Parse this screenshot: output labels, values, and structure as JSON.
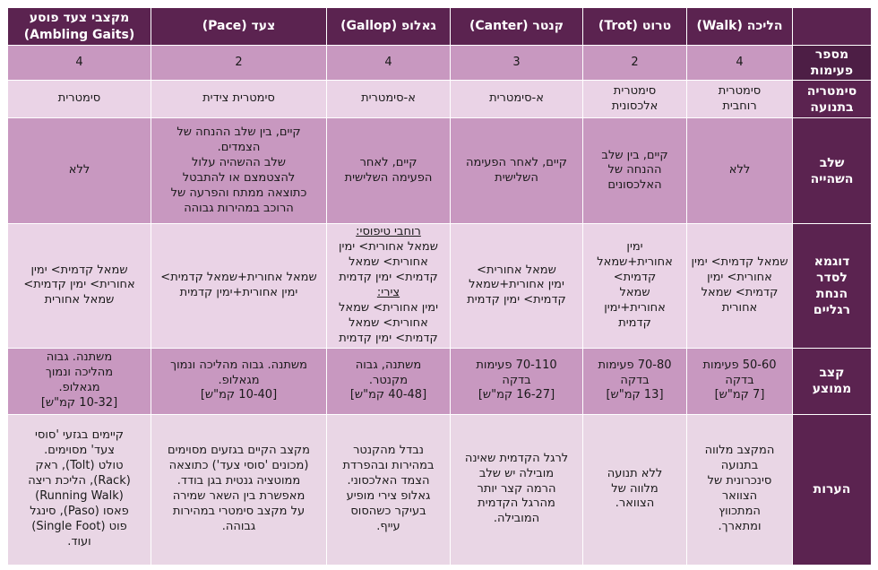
{
  "headers": {
    "walk": "הליכה (Walk)",
    "trot": "טרוט (Trot)",
    "canter": "קנטר (Canter)",
    "gallop": "גאלופ (Gallop)",
    "pace": "צעד (Pace)",
    "ambling": "מקצבי צעד פוסע\n(Ambling Gaits)"
  },
  "row_labels": {
    "beats": "מספר\nפעימות",
    "symmetry": "סימטריה\nבתנועה",
    "suspension": "שלב\nהשהייה",
    "order": "דוגמא\nלסדר\nהנחת\nרגליים",
    "speed": "קצב\nממוצע",
    "notes": "הערות"
  },
  "rows": {
    "beats": {
      "walk": "4",
      "trot": "2",
      "canter": "3",
      "gallop": "4",
      "pace": "2",
      "ambling": "4"
    },
    "symmetry": {
      "walk": "סימטרית\nרוחבית",
      "trot": "סימטרית\nאלכסונית",
      "canter": "א-סימטרית",
      "gallop": "א-סימטרית",
      "pace": "סימטרית צידית",
      "ambling": "סימטרית"
    },
    "suspension": {
      "walk": "ללא",
      "trot": "קיים, בין שלב\nההנחה של\nהאלכסונים",
      "canter": "קיים, לאחר הפעימה\nהשלישית",
      "gallop": "קיים, לאחר\nהפעימה השלישית",
      "pace": "קיים, בין שלב ההנחה של\nהצמדים.\nשלב ההשהיה עלול\nלהצטמצם או להתבטל\nכתוצאה ממתח והפרעה של\nהרוכב במהירות גבוהה",
      "ambling": "ללא"
    },
    "order": {
      "walk": "שמאל קדמית> ימין\nאחורית> ימין\nקדמית> שמאל\nאחורית",
      "trot": "ימין\nאחורית+שמאל\nקדמית>\nשמאל\nאחורית+ימין\nקדמית",
      "canter": "שמאל אחורית>\nימין אחורית+שמאל\nקדמית> ימין קדמית",
      "gallop_label1": "רוחבי טיפוסי:",
      "gallop_part1": "שמאל אחורית> ימין\nאחורית> שמאל\nקדמית> ימין קדמית",
      "gallop_label2": "צירי:",
      "gallop_part2": "ימין אחורית> שמאל\nאחורית> שמאל\nקדמית> ימין קדמית",
      "pace": "שמאל אחורית+שמאל קדמית>\nימין אחורית+ימין קדמית",
      "ambling": "שמאל קדמית> ימין\nאחורית> ימין קדמית>\nשמאל אחורית"
    },
    "speed": {
      "walk": "50-60 פעימות\nבדקה\n[7 קמ\"ש]",
      "trot": "70-80 פעימות\nבדקה\n[13 קמ\"ש]",
      "canter": "70-110 פעימות\nבדקה\n[16-27 קמ\"ש]",
      "gallop": "משתנה, גבוה\nמקנטר.\n[40-48 קמ\"ש]",
      "pace": "משתנה. גבוה מהליכה ונמוך\nמגאלופ.\n[10-40 קמ\"ש]",
      "ambling": "משתנה. גבוה\nמהליכה ונמוך\nמגאלופ.\n[10-32 קמ\"ש]"
    },
    "notes": {
      "walk": "המקצב מלווה\nבתנועה\nסינכרונית של\nהצוואר\nהמתכווץ\nומתארך.",
      "trot": "ללא תנועה\nמלווה של\nהצוואר.",
      "canter": "לרגל הקדמית שאינה\nמובילה יש שלב\nהרמה קצר יותר\nמהרגל הקדמית\nהמובילה.",
      "gallop": "נבדל מהקנטר\nבמהירות ובהפרדת\nהצמד האלכסוני.\nגאלופ צירי מופיע\nבעיקר כשהסוס\nעייף.",
      "pace": "מקצב הקיים בגזעים מסוימים\n(מכונים 'סוסי צעד') כתוצאה\nממוטציה גנטית בגן בודד.\nמאפשרת בין השאר שמירה\nעל מקצב סימטרי במהירות\nגבוהה.",
      "ambling": "קיימים בגזעי 'סוסי\nצעד' מסוימים.\nטולט (Tolt), ראק\n(Rack), הליכת ריצה\n(Running Walk)\nפאסו (Paso), סינגל\nפוט (Single Foot)\nועוד."
    }
  }
}
